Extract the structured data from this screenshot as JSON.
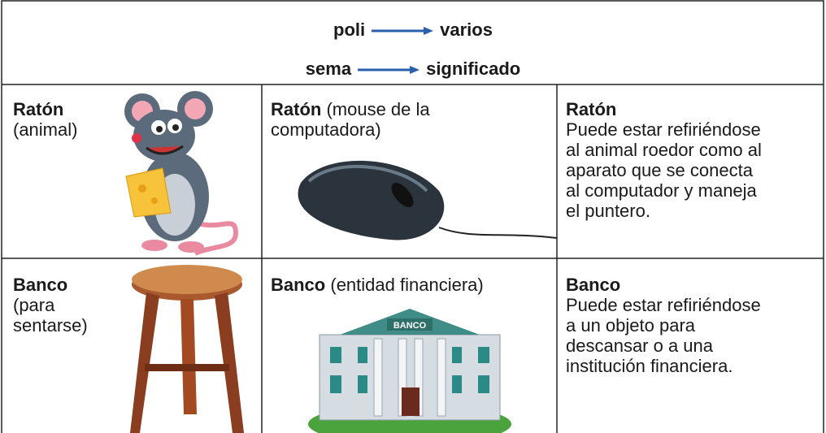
{
  "header": {
    "rows": [
      {
        "term": "poli",
        "meaning": "varios"
      },
      {
        "term": "sema",
        "meaning": "significado"
      }
    ]
  },
  "table": {
    "rows": [
      {
        "col1": {
          "word": "Ratón",
          "note": [
            "(animal)"
          ]
        },
        "col2": {
          "word": "Ratón",
          "note": [
            "(mouse de la",
            "computadora)"
          ]
        },
        "col3": {
          "word": "Ratón",
          "explanation": [
            "Puede estar refiriéndose",
            "al animal roedor como al",
            "aparato que se conecta",
            "al computador y maneja",
            "el puntero."
          ]
        }
      },
      {
        "col1": {
          "word": "Banco",
          "note": [
            "(para",
            "sentarse)"
          ]
        },
        "col2": {
          "word": "Banco",
          "note": [
            "(entidad financiera)"
          ],
          "sign": "BANCO"
        },
        "col3": {
          "word": "Banco",
          "explanation": [
            "Puede estar refiriéndose",
            "a un objeto para",
            "descansar o a una",
            "institución financiera."
          ]
        }
      }
    ]
  }
}
